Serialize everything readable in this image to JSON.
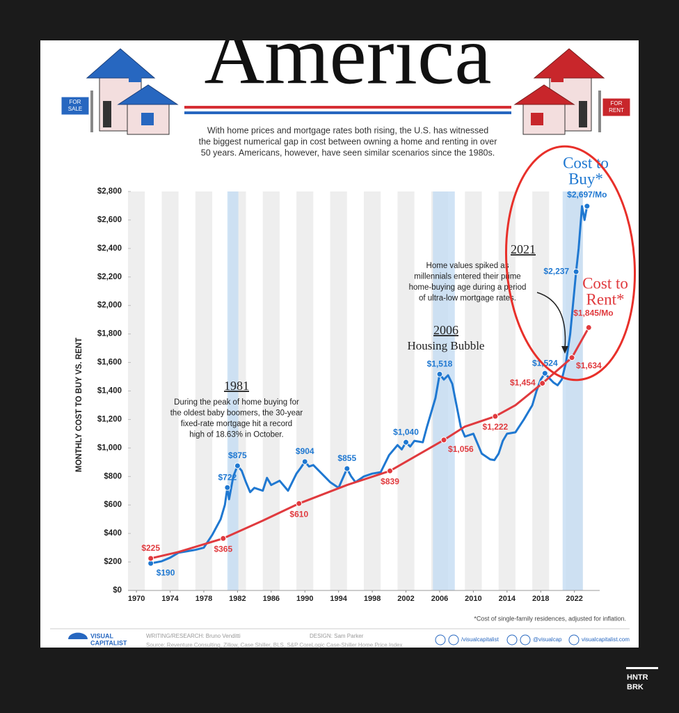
{
  "title": "America",
  "subtitle": [
    "With home prices and mortgage rates both rising, the U.S. has witnessed",
    "the biggest numerical gap in cost between owning a home and renting in over",
    "50 years. Americans, however, have seen similar scenarios since the 1980s."
  ],
  "signs": {
    "sale": [
      "FOR",
      "SALE"
    ],
    "rent": [
      "FOR",
      "RENT"
    ]
  },
  "chart_data": {
    "type": "line",
    "ylabel": "MONTHLY COST TO BUY VS. RENT",
    "xlim": [
      1969,
      2025
    ],
    "xticks": [
      1970,
      1974,
      1978,
      1982,
      1986,
      1990,
      1994,
      1998,
      2002,
      2006,
      2010,
      2014,
      2018,
      2022
    ],
    "ylim": [
      0,
      2800
    ],
    "yticks": [
      {
        "value": 0,
        "label": "$0"
      },
      {
        "value": 200,
        "label": "$200"
      },
      {
        "value": 400,
        "label": "$400"
      },
      {
        "value": 600,
        "label": "$600"
      },
      {
        "value": 800,
        "label": "$800"
      },
      {
        "value": 1000,
        "label": "$1,000"
      },
      {
        "value": 1200,
        "label": "$1,200"
      },
      {
        "value": 1400,
        "label": "$1,400"
      },
      {
        "value": 1600,
        "label": "$1,600"
      },
      {
        "value": 1800,
        "label": "$1,800"
      },
      {
        "value": 2000,
        "label": "$2,000"
      },
      {
        "value": 2200,
        "label": "$2,200"
      },
      {
        "value": 2400,
        "label": "$2,400"
      },
      {
        "value": 2600,
        "label": "$2,600"
      },
      {
        "value": 2800,
        "label": "$2,800"
      }
    ],
    "highlight_bands": [
      [
        1980.8,
        1982.1
      ],
      [
        2005.2,
        2007.8
      ],
      [
        2020.6,
        2023.0
      ]
    ],
    "series": [
      {
        "name": "Cost to Buy*",
        "name_lines": [
          "Cost to",
          "Buy*"
        ],
        "color": "#1f78d1",
        "x": [
          1971.7,
          1973,
          1974,
          1975,
          1976,
          1977,
          1978,
          1979,
          1980,
          1980.5,
          1980.8,
          1981,
          1981.5,
          1982,
          1982.5,
          1983,
          1983.5,
          1984,
          1985,
          1985.5,
          1986,
          1987,
          1988,
          1988.5,
          1989,
          1989.5,
          1990,
          1990.5,
          1991,
          1992,
          1993,
          1994,
          1995,
          1995.5,
          1996,
          1997,
          1998,
          1999,
          2000,
          2001,
          2001.5,
          2002,
          2002.5,
          2003,
          2004,
          2004.5,
          2005,
          2005.5,
          2006,
          2006.5,
          2007,
          2007.5,
          2008,
          2008.5,
          2009,
          2010,
          2010.5,
          2011,
          2012,
          2012.5,
          2013,
          2013.5,
          2014,
          2015,
          2016,
          2017,
          2017.5,
          2018,
          2018.5,
          2019,
          2019.5,
          2020,
          2020.5,
          2021,
          2021.5,
          2022.2,
          2022.5,
          2022.9,
          2023.2,
          2023.5
        ],
        "values": [
          190,
          205,
          230,
          265,
          275,
          285,
          300,
          390,
          500,
          600,
          722,
          640,
          800,
          875,
          840,
          760,
          690,
          720,
          700,
          790,
          740,
          770,
          700,
          760,
          820,
          860,
          904,
          870,
          880,
          820,
          760,
          720,
          855,
          800,
          760,
          800,
          820,
          830,
          950,
          1020,
          990,
          1040,
          1010,
          1050,
          1040,
          1150,
          1250,
          1350,
          1518,
          1480,
          1510,
          1450,
          1300,
          1150,
          1080,
          1100,
          1030,
          960,
          920,
          915,
          960,
          1050,
          1100,
          1110,
          1200,
          1300,
          1400,
          1480,
          1524,
          1490,
          1460,
          1440,
          1480,
          1600,
          1800,
          2237,
          2400,
          2697,
          2600,
          2697
        ],
        "value_labels": [
          "$190",
          null,
          null,
          null,
          null,
          null,
          null,
          null,
          null,
          null,
          "$722",
          null,
          null,
          "$875",
          null,
          null,
          null,
          null,
          null,
          null,
          null,
          null,
          null,
          null,
          null,
          null,
          "$904",
          null,
          null,
          null,
          null,
          null,
          "$855",
          null,
          null,
          null,
          null,
          null,
          null,
          null,
          null,
          "$1,040",
          null,
          null,
          null,
          null,
          null,
          null,
          "$1,518",
          null,
          null,
          null,
          null,
          null,
          null,
          null,
          null,
          null,
          null,
          null,
          null,
          null,
          null,
          null,
          null,
          null,
          null,
          null,
          "$1,524",
          null,
          null,
          null,
          null,
          null,
          null,
          "$2,237",
          null,
          null,
          null,
          "$2,697/Mo"
        ]
      },
      {
        "name": "Cost to Rent*",
        "name_lines": [
          "Cost to",
          "Rent*"
        ],
        "color": "#e03a3e",
        "x": [
          1971.7,
          1975,
          1980.3,
          1985,
          1989.3,
          1995,
          2000.1,
          2006.5,
          2009,
          2012.6,
          2015,
          2018.2,
          2021.7,
          2023.7
        ],
        "values": [
          225,
          270,
          365,
          490,
          610,
          740,
          839,
          1056,
          1150,
          1222,
          1300,
          1454,
          1634,
          1845
        ],
        "value_labels": [
          "$225",
          null,
          "$365",
          null,
          "$610",
          null,
          "$839",
          "$1,056",
          null,
          "$1,222",
          null,
          "$1,454",
          "$1,634",
          "$1,845/Mo"
        ]
      }
    ],
    "annotations": [
      {
        "title": "1981",
        "lines": [
          "During the peak of home buying for",
          "the oldest baby boomers, the 30-year",
          "fixed-rate mortgage hit a record",
          "high of 18.63% in October."
        ]
      },
      {
        "title": "2006",
        "lines": [
          "Housing Bubble"
        ]
      },
      {
        "title": "2021",
        "lines": [
          "Home values spiked as",
          "millennials entered their prime",
          "home-buying age during a period",
          "of ultra-low mortgage rates."
        ]
      }
    ],
    "footnote": "*Cost of single-family residences, adjusted for inflation."
  },
  "footer": {
    "logo": [
      "VISUAL",
      "CAPITALIST"
    ],
    "research": "WRITING/RESEARCH: Bruno Venditti",
    "design": "DESIGN: Sam Parker",
    "source": "Source: Reventure Consulting, Zillow, Case Shiller, BLS, S&P CoreLogic Case-Shiller Home Price Index",
    "social": [
      "/visualcapitalist",
      "@visualcap",
      "visualcapitalist.com"
    ]
  },
  "watermark": [
    "HNTR",
    "BRK"
  ]
}
